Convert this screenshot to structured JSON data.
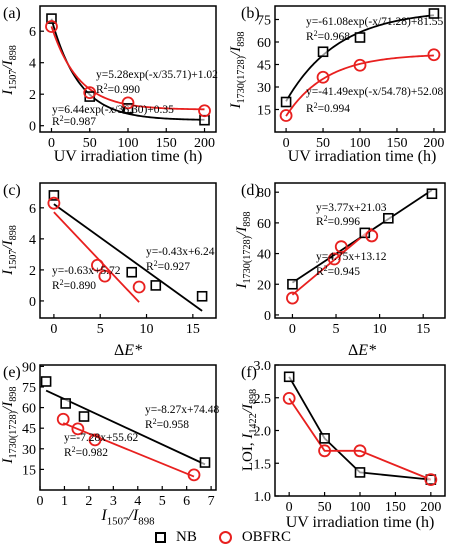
{
  "colors": {
    "nb": "#000000",
    "obfrc": "#e8201f"
  },
  "legend": {
    "nb": "NB",
    "obfrc": "OBFRC"
  },
  "chart_data": [
    {
      "panel": "(a)",
      "type": "scatter",
      "xlabel": "UV irradiation time (h)",
      "ylabel": "I1507/I898",
      "xlim": [
        -15,
        215
      ],
      "ylim": [
        -0.4,
        7.6
      ],
      "xticks": [
        0,
        50,
        100,
        150,
        200
      ],
      "yticks": [
        0,
        2,
        4,
        6
      ],
      "series": [
        {
          "name": "NB",
          "x": [
            0,
            50,
            100,
            200
          ],
          "y": [
            6.8,
            1.85,
            1.1,
            0.35
          ],
          "fit": {
            "kind": "exp",
            "A": 6.44,
            "t": 36.3,
            "c": 0.35
          }
        },
        {
          "name": "OBFRC",
          "x": [
            0,
            50,
            100,
            200
          ],
          "y": [
            6.3,
            2.1,
            1.45,
            0.95
          ],
          "fit": {
            "kind": "exp",
            "A": 5.28,
            "t": 35.71,
            "c": 1.02
          }
        }
      ],
      "annotations": [
        {
          "text": "y=5.28exp(-x/35.71)+1.02",
          "series": "OBFRC"
        },
        {
          "text": "R²=0.990",
          "series": "OBFRC"
        },
        {
          "text": "y=6.44exp(-x/36.30)+0.35",
          "series": "NB"
        },
        {
          "text": "R²=0.987",
          "series": "NB"
        }
      ]
    },
    {
      "panel": "(b)",
      "type": "scatter",
      "xlabel": "UV irradiation time (h)",
      "ylabel": "I1730(1728)/I898",
      "xlim": [
        -15,
        215
      ],
      "ylim": [
        0,
        84
      ],
      "xticks": [
        0,
        50,
        100,
        150,
        200
      ],
      "yticks": [
        15,
        30,
        45,
        60,
        75
      ],
      "series": [
        {
          "name": "NB",
          "x": [
            0,
            50,
            100,
            200
          ],
          "y": [
            20,
            53.5,
            63,
            79
          ],
          "fit": {
            "kind": "exp",
            "A": -61.08,
            "t": 71.28,
            "c": 81.55
          }
        },
        {
          "name": "OBFRC",
          "x": [
            0,
            50,
            100,
            200
          ],
          "y": [
            11,
            36.5,
            44.5,
            51.5
          ],
          "fit": {
            "kind": "exp",
            "A": -41.49,
            "t": 54.78,
            "c": 52.08
          }
        }
      ],
      "annotations": [
        {
          "text": "y=-61.08exp(-x/71.28)+81.55",
          "series": "NB"
        },
        {
          "text": "R²=0.968",
          "series": "NB"
        },
        {
          "text": "y=-41.49exp(-x/54.78)+52.08",
          "series": "OBFRC"
        },
        {
          "text": "R²=0.994",
          "series": "OBFRC"
        }
      ]
    },
    {
      "panel": "(c)",
      "type": "scatter",
      "xlabel": "ΔE*",
      "ylabel": "I1507/I898",
      "xlim": [
        -1.5,
        17.5
      ],
      "ylim": [
        -1.1,
        7.6
      ],
      "xticks": [
        0,
        5,
        10,
        15
      ],
      "yticks": [
        0,
        2,
        4,
        6
      ],
      "series": [
        {
          "name": "NB",
          "x": [
            0,
            8.4,
            11,
            16
          ],
          "y": [
            6.8,
            1.85,
            1.0,
            0.3
          ],
          "fit": {
            "kind": "linear",
            "m": -0.43,
            "b": 6.24,
            "x0": 0,
            "x1": 16
          }
        },
        {
          "name": "OBFRC",
          "x": [
            0,
            4.7,
            5.5,
            9.2
          ],
          "y": [
            6.3,
            2.3,
            1.6,
            0.9
          ],
          "fit": {
            "kind": "linear",
            "m": -0.63,
            "b": 5.72,
            "x0": 0,
            "x1": 9.2
          }
        }
      ],
      "annotations": [
        {
          "text": "y=-0.43x+6.24",
          "series": "NB"
        },
        {
          "text": "R²=0.927",
          "series": "NB"
        },
        {
          "text": "y=-0.63x+5.72",
          "series": "OBFRC"
        },
        {
          "text": "R²=0.890",
          "series": "OBFRC"
        }
      ]
    },
    {
      "panel": "(d)",
      "type": "scatter",
      "xlabel": "ΔE*",
      "ylabel": "I1730(1728)/I898",
      "xlim": [
        -2,
        17.5
      ],
      "ylim": [
        -2,
        86
      ],
      "xticks": [
        0,
        5,
        10,
        15
      ],
      "yticks": [
        0,
        20,
        40,
        60,
        80
      ],
      "series": [
        {
          "name": "NB",
          "x": [
            0,
            8.3,
            11,
            16
          ],
          "y": [
            20,
            53.5,
            63,
            79
          ],
          "fit": {
            "kind": "linear",
            "m": 3.77,
            "b": 21.03,
            "x0": 0,
            "x1": 16
          }
        },
        {
          "name": "OBFRC",
          "x": [
            0,
            4.8,
            5.6,
            9.1
          ],
          "y": [
            11,
            36.5,
            44.5,
            51.5
          ],
          "fit": {
            "kind": "linear",
            "m": 4.75,
            "b": 13.12,
            "x0": 0,
            "x1": 9.1
          }
        }
      ],
      "annotations": [
        {
          "text": "y=3.77x+21.03",
          "series": "NB"
        },
        {
          "text": "R²=0.996",
          "series": "NB"
        },
        {
          "text": "y=4.75x+13.12",
          "series": "OBFRC"
        },
        {
          "text": "R²=0.945",
          "series": "OBFRC"
        }
      ]
    },
    {
      "panel": "(e)",
      "type": "scatter",
      "xlabel": "I1507/I898",
      "ylabel": "I1730(1728)/I898",
      "xlim": [
        0,
        7.2
      ],
      "ylim": [
        0,
        91
      ],
      "xticks": [
        0,
        1,
        2,
        3,
        4,
        5,
        6,
        7
      ],
      "yticks": [
        15,
        30,
        45,
        60,
        75,
        90
      ],
      "series": [
        {
          "name": "NB",
          "x": [
            0.25,
            1.05,
            1.8,
            6.75
          ],
          "y": [
            79,
            63,
            53.5,
            20
          ],
          "fit": {
            "kind": "linear",
            "m": -8.27,
            "b": 74.48,
            "x0": 0.25,
            "x1": 6.75
          }
        },
        {
          "name": "OBFRC",
          "x": [
            0.95,
            1.55,
            2.25,
            6.3
          ],
          "y": [
            51.5,
            44.5,
            36.5,
            11
          ],
          "fit": {
            "kind": "linear",
            "m": -7.28,
            "b": 55.62,
            "x0": 0.95,
            "x1": 6.3
          }
        }
      ],
      "annotations": [
        {
          "text": "y=-8.27x+74.48",
          "series": "NB"
        },
        {
          "text": "R²=0.958",
          "series": "NB"
        },
        {
          "text": "y=-7.28x+55.62",
          "series": "OBFRC"
        },
        {
          "text": "R²=0.982",
          "series": "OBFRC"
        }
      ]
    },
    {
      "panel": "(f)",
      "type": "line",
      "xlabel": "UV irradiation time (h)",
      "ylabel": "LOI, I1422/I898",
      "xlim": [
        -20,
        220
      ],
      "ylim": [
        1.0,
        3.0
      ],
      "xticks": [
        0,
        50,
        100,
        150,
        200
      ],
      "yticks": [
        1.0,
        1.5,
        2.0,
        2.5,
        3.0
      ],
      "series": [
        {
          "name": "NB",
          "x": [
            0,
            50,
            100,
            200
          ],
          "y": [
            2.82,
            1.88,
            1.36,
            1.25
          ]
        },
        {
          "name": "OBFRC",
          "x": [
            0,
            50,
            100,
            200
          ],
          "y": [
            2.49,
            1.69,
            1.69,
            1.25
          ]
        }
      ]
    }
  ]
}
